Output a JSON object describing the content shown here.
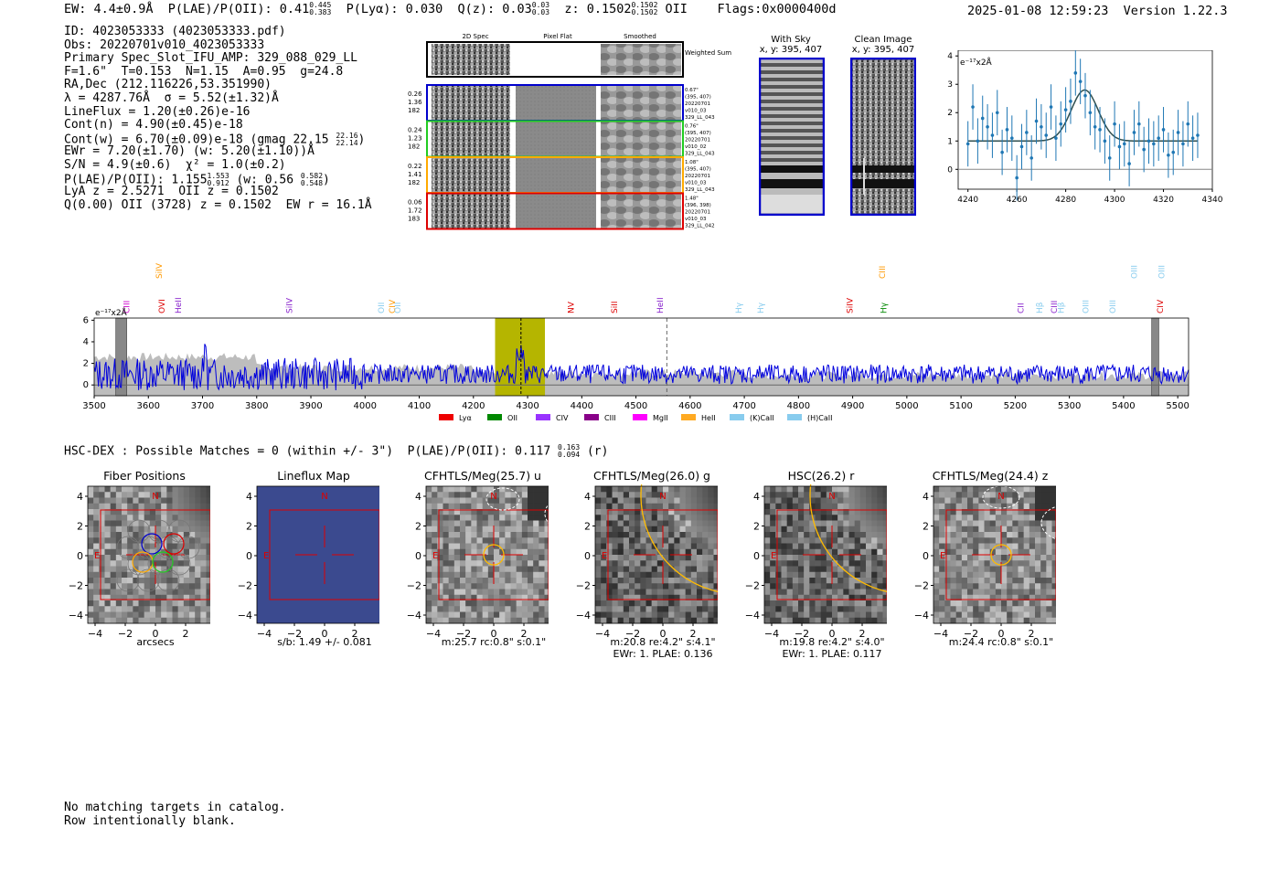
{
  "header": {
    "line": "EW: 4.4±0.9Å  P(LAE)/P(OII): 0.41",
    "plae_hi": "0.445",
    "plae_lo": "0.383",
    "plya": "P(Lyα): 0.030",
    "qz": "Q(z): 0.03",
    "qz_hi": "0.03",
    "qz_lo": "0.03",
    "z": "z: 0.1502",
    "z_hi": "0.1502",
    "z_lo": "0.1502",
    "z_line": "OII",
    "flags": "Flags:0x0000400d",
    "timestamp": "2025-01-08 12:59:23  Version 1.22.3"
  },
  "info": {
    "lines": [
      "ID: 4023053333 (4023053333.pdf)",
      "Obs: 20220701v010_4023053333",
      "Primary Spec_Slot_IFU_AMP: 329_088_029_LL",
      "F=1.6\"  T=0.153  N=1.15  A=0.95  g=24.8",
      "RA,Dec (212.116226,53.351990)",
      "λ = 4287.76Å  σ = 5.52(±1.32)Å",
      "LineFlux = 1.20(±0.26)e-16",
      "Cont(n) = 4.90(±0.45)e-18"
    ],
    "contw": "Cont(w) = 6.70(±0.09)e-18 (gmag 22.15",
    "contw_hi": "22.16",
    "contw_lo": "22.14",
    "ewr": "EWr = 7.20(±1.70) (w: 5.20(±1.10))Å",
    "sn": "S/N = 4.9(±0.6)  χ² = 1.0(±0.2)",
    "plae": "P(LAE)/P(OII): 1.155",
    "plae_hi": "1.553",
    "plae_lo": "0.912",
    "plae_w": "(w: 0.56",
    "plae_w_hi": "0.582",
    "plae_w_lo": "0.548",
    "lya": "LyA z = 2.5271  OII z = 0.1502",
    "q": "Q(0.00) OII (3728) z = 0.1502  EW r = 16.1Å"
  },
  "cutouts": {
    "col_headers": [
      "2D Spec",
      "Pixel Flat",
      "Smoothed"
    ],
    "weighted_sum": "Weighted Sum",
    "rows": [
      {
        "left": [
          "0.26",
          "1.36",
          "182"
        ],
        "right": [
          "0.67\"",
          "(395, 407)",
          "20220701",
          "v010_03",
          "329_LL_043"
        ],
        "color": "#0000cc"
      },
      {
        "left": [
          "0.24",
          "1.23",
          "182"
        ],
        "right": [
          "0.76\"",
          "(395, 407)",
          "20220701",
          "v010_02",
          "329_LL_043"
        ],
        "color": "#22cc22"
      },
      {
        "left": [
          "0.22",
          "1.41",
          "182"
        ],
        "right": [
          "1.08\"",
          "(395, 407)",
          "20220701",
          "v010_03",
          "329_LL_043"
        ],
        "color": "#ffaa00"
      },
      {
        "left": [
          "0.06",
          "1.72",
          "183"
        ],
        "right": [
          "1.48\"",
          "(396, 398)",
          "20220701",
          "v010_03",
          "329_LL_042"
        ],
        "color": "#dd0000"
      }
    ]
  },
  "sky": {
    "with_sky_title": "With Sky",
    "with_sky_coords": "x, y: 395, 407",
    "clean_title": "Clean Image",
    "clean_coords": "x, y: 395, 407"
  },
  "chart_data": [
    {
      "type": "scatter",
      "name": "line-fit",
      "units_label": "e⁻¹⁷x2Å",
      "x": [
        4240,
        4242,
        4244,
        4246,
        4248,
        4250,
        4252,
        4254,
        4256,
        4258,
        4260,
        4262,
        4264,
        4266,
        4268,
        4270,
        4272,
        4274,
        4276,
        4278,
        4280,
        4282,
        4284,
        4286,
        4288,
        4290,
        4292,
        4294,
        4296,
        4298,
        4300,
        4302,
        4304,
        4306,
        4308,
        4310,
        4312,
        4314,
        4316,
        4318,
        4320,
        4322,
        4324,
        4326,
        4328,
        4330,
        4332,
        4334
      ],
      "y": [
        0.9,
        2.2,
        1.0,
        1.8,
        1.5,
        1.2,
        2.0,
        0.6,
        1.4,
        1.1,
        -0.3,
        0.8,
        1.3,
        0.4,
        1.7,
        1.5,
        1.2,
        2.2,
        1.1,
        1.6,
        2.1,
        2.4,
        3.4,
        3.1,
        2.6,
        2.0,
        1.5,
        1.4,
        1.0,
        0.4,
        1.6,
        0.8,
        0.9,
        0.2,
        1.3,
        1.6,
        0.7,
        1.0,
        0.9,
        1.1,
        1.4,
        0.5,
        0.6,
        1.3,
        0.9,
        1.6,
        1.1,
        1.2
      ],
      "err": [
        0.8,
        0.8,
        0.8,
        0.8,
        0.8,
        0.8,
        0.8,
        0.8,
        0.8,
        0.8,
        0.8,
        0.8,
        0.8,
        0.8,
        0.8,
        0.8,
        0.8,
        0.8,
        0.8,
        0.8,
        0.8,
        0.8,
        0.8,
        0.8,
        0.8,
        0.8,
        0.8,
        0.8,
        0.8,
        0.8,
        0.8,
        0.8,
        0.8,
        0.8,
        0.8,
        0.8,
        0.8,
        0.8,
        0.8,
        0.8,
        0.8,
        0.8,
        0.8,
        0.8,
        0.8,
        0.8,
        0.8,
        0.8
      ],
      "fit": {
        "continuum": 1.0,
        "center": 4287.76,
        "sigma": 5.52,
        "amplitude": 1.8
      },
      "xlim": [
        4236,
        4340
      ],
      "ylim": [
        -0.7,
        4.2
      ],
      "xticks": [
        4240,
        4260,
        4280,
        4300,
        4320,
        4340
      ],
      "yticks": [
        0,
        1,
        2,
        3,
        4
      ]
    },
    {
      "type": "line",
      "name": "full-spectrum",
      "units_label": "e⁻¹⁷x2Å",
      "xlim": [
        3500,
        5520
      ],
      "ylim": [
        -1,
        6.2
      ],
      "xticks": [
        3500,
        3600,
        3700,
        3800,
        3900,
        4000,
        4100,
        4200,
        4300,
        4400,
        4500,
        4600,
        4700,
        4800,
        4900,
        5000,
        5100,
        5200,
        5300,
        5400,
        5500
      ],
      "yticks": [
        0,
        2,
        4,
        6
      ],
      "highlight_band": [
        4240,
        4332
      ],
      "line_center": 4287.76,
      "dashed_marker": 4557,
      "masked_regions": [
        [
          3540,
          3560
        ],
        [
          5452,
          5465
        ]
      ],
      "line_labels": [
        {
          "x": 3560,
          "label": "CIII",
          "color": "#cc00cc",
          "row": 2
        },
        {
          "x": 3620,
          "label": "SiIV",
          "color": "#ff9900",
          "row": 0
        },
        {
          "x": 3625,
          "label": "OVI",
          "color": "#dd0000",
          "row": 2
        },
        {
          "x": 3655,
          "label": "HeII",
          "color": "#8822cc",
          "row": 2
        },
        {
          "x": 3860,
          "label": "SiIV",
          "color": "#8822cc",
          "row": 2
        },
        {
          "x": 4030,
          "label": "OII",
          "color": "#88ccee",
          "row": 2
        },
        {
          "x": 4050,
          "label": "CIV",
          "color": "#ff9900",
          "row": 2
        },
        {
          "x": 4060,
          "label": "OII",
          "color": "#88ccee",
          "row": 2
        },
        {
          "x": 4380,
          "label": "NV",
          "color": "#dd0000",
          "row": 2
        },
        {
          "x": 4460,
          "label": "SiII",
          "color": "#dd0000",
          "row": 2
        },
        {
          "x": 4545,
          "label": "HeII",
          "color": "#8822cc",
          "row": 2
        },
        {
          "x": 4690,
          "label": "Hγ",
          "color": "#88ccee",
          "row": 2
        },
        {
          "x": 4730,
          "label": "Hγ",
          "color": "#88ccee",
          "row": 2
        },
        {
          "x": 4895,
          "label": "SiIV",
          "color": "#dd0000",
          "row": 2
        },
        {
          "x": 4955,
          "label": "CIII",
          "color": "#ff9900",
          "row": 0
        },
        {
          "x": 4957,
          "label": "Hγ",
          "color": "#008800",
          "row": 2
        },
        {
          "x": 5210,
          "label": "CII",
          "color": "#8822cc",
          "row": 2
        },
        {
          "x": 5245,
          "label": "Hβ",
          "color": "#88ccee",
          "row": 2
        },
        {
          "x": 5272,
          "label": "CIII",
          "color": "#8822cc",
          "row": 2
        },
        {
          "x": 5285,
          "label": "Hβ",
          "color": "#88ccee",
          "row": 2
        },
        {
          "x": 5330,
          "label": "OIII",
          "color": "#88ccee",
          "row": 2
        },
        {
          "x": 5380,
          "label": "OIII",
          "color": "#88ccee",
          "row": 2
        },
        {
          "x": 5420,
          "label": "OIII",
          "color": "#88ccee",
          "row": 0
        },
        {
          "x": 5470,
          "label": "OIII",
          "color": "#88ccee",
          "row": 0
        },
        {
          "x": 5468,
          "label": "CIV",
          "color": "#dd0000",
          "row": 2
        }
      ],
      "legend": [
        {
          "label": "Lyα",
          "color": "#ee0000"
        },
        {
          "label": "OII",
          "color": "#008800"
        },
        {
          "label": "CIV",
          "color": "#9933ff"
        },
        {
          "label": "CIII",
          "color": "#880088"
        },
        {
          "label": "MgII",
          "color": "#ff00ff"
        },
        {
          "label": "HeII",
          "color": "#ffaa22"
        },
        {
          "label": "(K)CaII",
          "color": "#88ccee"
        },
        {
          "label": "(H)CaII",
          "color": "#88ccee"
        }
      ]
    }
  ],
  "hsc_line": "HSC-DEX : Possible Matches = 0 (within +/- 3\")  P(LAE)/P(OII): 0.117",
  "hsc_hi": "0.163",
  "hsc_lo": "0.094",
  "hsc_filter": "(r)",
  "imaging_panels": [
    {
      "title": "Fiber Positions",
      "caption": "arcsecs",
      "caption2": ""
    },
    {
      "title": "Lineflux Map",
      "caption": "s/b: 1.49 +/- 0.081",
      "caption2": ""
    },
    {
      "title": "CFHTLS/Meg(25.7) u",
      "caption": "m:25.7 rc:0.8\"  s:0.1\"",
      "caption2": ""
    },
    {
      "title": "CFHTLS/Meg(26.0) g",
      "caption": "m:20.8  re:4.2\"  s:4.1\"",
      "caption2": "EWr: 1. PLAE: 0.136"
    },
    {
      "title": "HSC(26.2) r",
      "caption": "m:19.8  re:4.2\"  s:4.0\"",
      "caption2": "EWr: 1. PLAE: 0.117"
    },
    {
      "title": "CFHTLS/Meg(24.4) z",
      "caption": "m:24.4 rc:0.8\"  s:0.1\"",
      "caption2": ""
    }
  ],
  "axis_ticks": [
    "4",
    "2",
    "0",
    "−2",
    "−4"
  ],
  "compass": {
    "north": "N",
    "east": "E"
  },
  "footer": [
    "No matching targets in catalog.",
    "Row intentionally blank."
  ]
}
